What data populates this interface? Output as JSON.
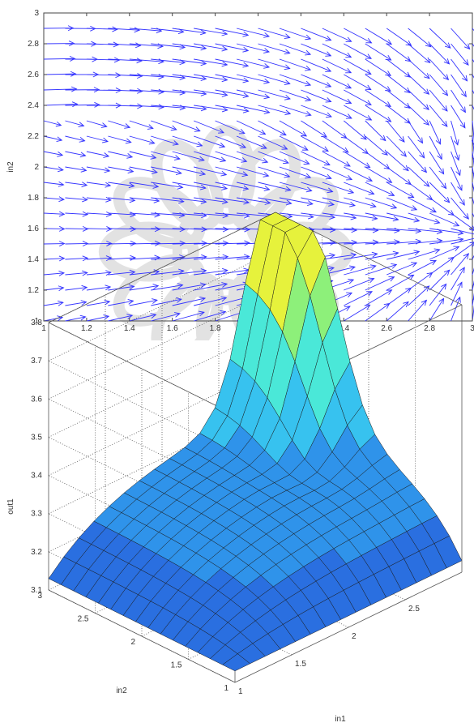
{
  "chart_data": [
    {
      "type": "quiver",
      "title": "",
      "xlabel": "in1",
      "ylabel": "in2",
      "xlim": [
        1,
        3
      ],
      "ylim": [
        1,
        3
      ],
      "xticks": [
        "1",
        "1.2",
        "1.4",
        "1.6",
        "1.8",
        "2",
        "2.2",
        "2.4",
        "2.6",
        "2.8",
        "3"
      ],
      "yticks": [
        "1",
        "1.2",
        "1.4",
        "1.6",
        "1.8",
        "2",
        "2.2",
        "2.4",
        "2.6",
        "2.8",
        "3"
      ],
      "grid": false,
      "arrow_color": "#3333ff",
      "grid_x": [
        1.0,
        1.1,
        1.2,
        1.3,
        1.4,
        1.5,
        1.6,
        1.7,
        1.8,
        1.9,
        2.0,
        2.1,
        2.2,
        2.3,
        2.4,
        2.5,
        2.6,
        2.7,
        2.8,
        2.9,
        3.0
      ],
      "grid_y": [
        1.0,
        1.1,
        1.2,
        1.3,
        1.4,
        1.5,
        1.6,
        1.7,
        1.8,
        1.9,
        2.0,
        2.1,
        2.2,
        2.3,
        2.4,
        2.5,
        2.6,
        2.7,
        2.8,
        2.9
      ]
    },
    {
      "type": "surface",
      "title": "",
      "xlabel": "in1",
      "ylabel": "in2",
      "zlabel": "out1",
      "xlim": [
        1,
        3
      ],
      "ylim": [
        1,
        3
      ],
      "zlim": [
        3.1,
        3.8
      ],
      "xticks": [
        "1",
        "1.5",
        "2",
        "2.5"
      ],
      "yticks": [
        "1",
        "1.5",
        "2",
        "2.5",
        "3"
      ],
      "zticks": [
        "3.1",
        "3.2",
        "3.3",
        "3.4",
        "3.5",
        "3.6",
        "3.7",
        "3.8"
      ],
      "grid": true,
      "colormap": [
        "#2a6fe0",
        "#2f93ea",
        "#37c2ef",
        "#4ae8d8",
        "#8df07a",
        "#e6f23c"
      ],
      "mesh_size": 15
    }
  ]
}
